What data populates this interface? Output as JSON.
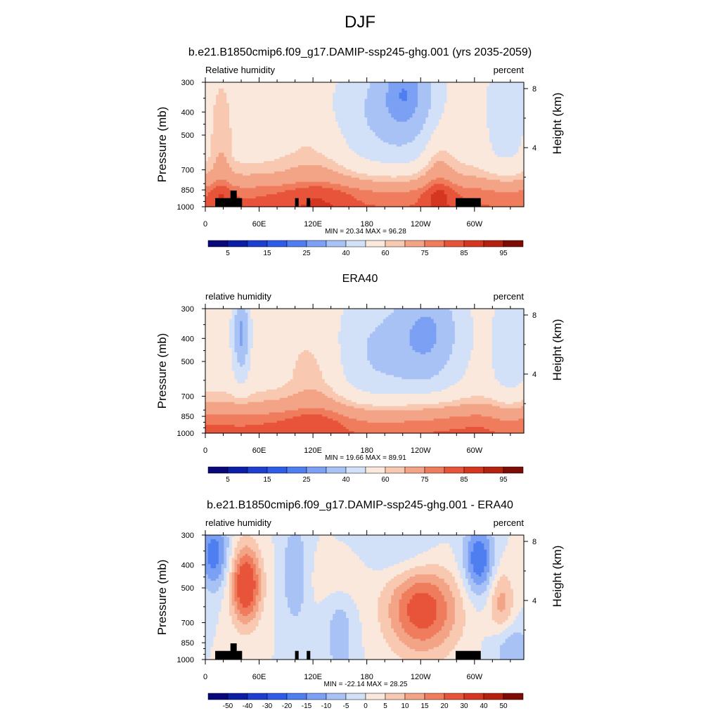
{
  "page_title": "DJF",
  "colors": {
    "scale": [
      "#08087a",
      "#0a1ea6",
      "#1d3ecf",
      "#2e5be8",
      "#4f7ef0",
      "#7ba0f4",
      "#a8c2f6",
      "#d3e1f8",
      "#fbe8dc",
      "#f8c8b0",
      "#f4a486",
      "#ef7c5c",
      "#e8543a",
      "#d53620",
      "#b5210f",
      "#7d0c05"
    ],
    "topography": "#000000"
  },
  "chart_data": [
    {
      "type": "heatmap",
      "title": "b.e21.B1850cmip6.f09_g17.DAMIP-ssp245-ghg.001 (yrs 2035-2059)",
      "left_label": "Relative humidity",
      "right_label": "percent",
      "ylabel": "Pressure (mb)",
      "ylabel_right": "Height (km)",
      "yticks": [
        "300",
        "400",
        "500",
        "700",
        "850",
        "1000"
      ],
      "ytick_values": [
        300,
        400,
        500,
        700,
        850,
        1000
      ],
      "yticks_right": [
        "8",
        "4"
      ],
      "yticks_right_values": [
        8,
        4
      ],
      "xticks": [
        "0",
        "60E",
        "120E",
        "180",
        "120W",
        "60W"
      ],
      "xtick_values": [
        0,
        60,
        120,
        180,
        240,
        300
      ],
      "xlim": [
        0,
        355
      ],
      "ylim": [
        1000,
        300
      ],
      "stats": "MIN =  20.34  MAX =  96.28",
      "colorbar_labels": [
        "5",
        "15",
        "25",
        "40",
        "60",
        "75",
        "85",
        "95"
      ],
      "colorbar_label_index": [
        1,
        3,
        5,
        7,
        9,
        11,
        13,
        15
      ],
      "field": "model",
      "topography": true
    },
    {
      "type": "heatmap",
      "title": "ERA40",
      "left_label": "relative humidity",
      "right_label": "percent",
      "ylabel": "Pressure (mb)",
      "ylabel_right": "Height (km)",
      "yticks": [
        "300",
        "400",
        "500",
        "700",
        "850",
        "1000"
      ],
      "ytick_values": [
        300,
        400,
        500,
        700,
        850,
        1000
      ],
      "yticks_right": [
        "8",
        "4"
      ],
      "yticks_right_values": [
        8,
        4
      ],
      "xticks": [
        "0",
        "60E",
        "120E",
        "180",
        "120W",
        "60W"
      ],
      "xtick_values": [
        0,
        60,
        120,
        180,
        240,
        300
      ],
      "xlim": [
        0,
        355
      ],
      "ylim": [
        1000,
        300
      ],
      "stats": "MIN =  19.66  MAX =  89.91",
      "colorbar_labels": [
        "5",
        "15",
        "25",
        "40",
        "60",
        "75",
        "85",
        "95"
      ],
      "colorbar_label_index": [
        1,
        3,
        5,
        7,
        9,
        11,
        13,
        15
      ],
      "field": "obs",
      "topography": false
    },
    {
      "type": "heatmap",
      "title": "b.e21.B1850cmip6.f09_g17.DAMIP-ssp245-ghg.001 - ERA40",
      "left_label": "relative humidity",
      "right_label": "percent",
      "ylabel": "Pressure (mb)",
      "ylabel_right": "Height (km)",
      "yticks": [
        "300",
        "400",
        "500",
        "700",
        "850",
        "1000"
      ],
      "ytick_values": [
        300,
        400,
        500,
        700,
        850,
        1000
      ],
      "yticks_right": [
        "8",
        "4"
      ],
      "yticks_right_values": [
        8,
        4
      ],
      "xticks": [
        "0",
        "60E",
        "120E",
        "180",
        "120W",
        "60W"
      ],
      "xtick_values": [
        0,
        60,
        120,
        180,
        240,
        300
      ],
      "xlim": [
        0,
        355
      ],
      "ylim": [
        1000,
        300
      ],
      "stats": "MIN = -22.14  MAX =  28.25",
      "colorbar_labels": [
        "-50",
        "-40",
        "-30",
        "-20",
        "-15",
        "-10",
        "-5",
        "0",
        "5",
        "10",
        "15",
        "20",
        "30",
        "40",
        "50"
      ],
      "colorbar_label_index": [
        1,
        2,
        3,
        4,
        5,
        6,
        7,
        8,
        9,
        10,
        11,
        12,
        13,
        14,
        15
      ],
      "field": "diff",
      "topography": true
    }
  ]
}
